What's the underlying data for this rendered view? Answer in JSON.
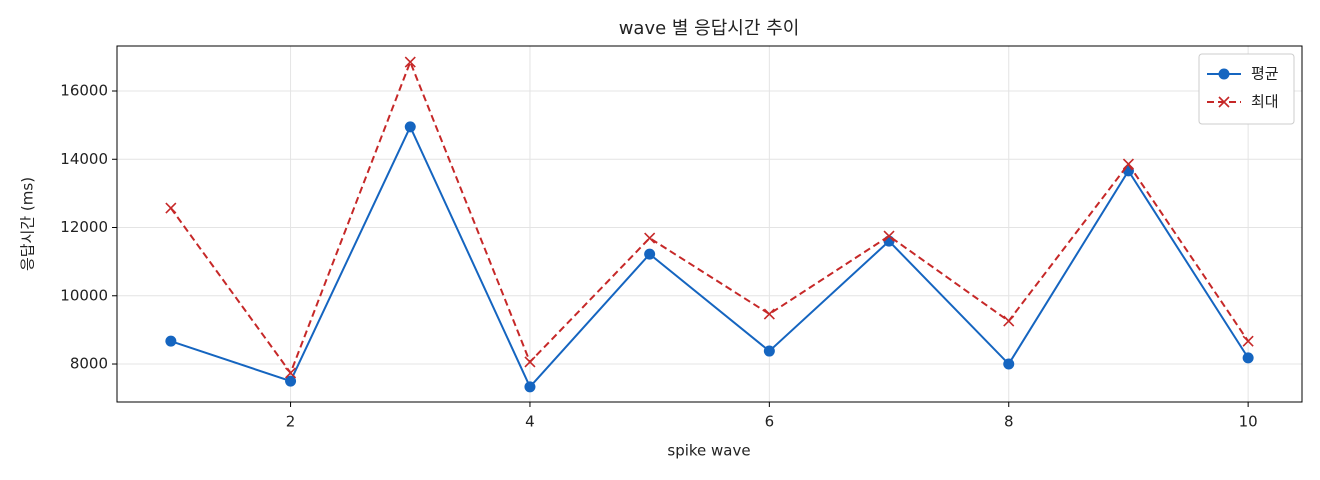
{
  "chart_data": {
    "type": "line",
    "title": "wave 별 응답시간 추이",
    "xlabel": "spike wave",
    "ylabel": "응답시간 (ms)",
    "x": [
      1,
      2,
      3,
      4,
      5,
      6,
      7,
      8,
      9,
      10
    ],
    "series": [
      {
        "name": "평균",
        "color": "#1565c0",
        "marker": "circle",
        "linestyle": "solid",
        "values": [
          8670,
          7500,
          14950,
          7330,
          11220,
          8380,
          11600,
          8000,
          13660,
          8180
        ]
      },
      {
        "name": "최대",
        "color": "#c62828",
        "marker": "x",
        "linestyle": "dashed",
        "values": [
          12570,
          7740,
          16850,
          8060,
          11690,
          9465,
          11750,
          9260,
          13860,
          8670
        ]
      }
    ],
    "xlim": [
      0.55,
      10.45
    ],
    "xticks": [
      2,
      4,
      6,
      8,
      10
    ],
    "ylim": [
      6887,
      17319
    ],
    "yticks": [
      8000,
      10000,
      12000,
      14000,
      16000
    ],
    "grid": true,
    "legend": "upper right"
  }
}
